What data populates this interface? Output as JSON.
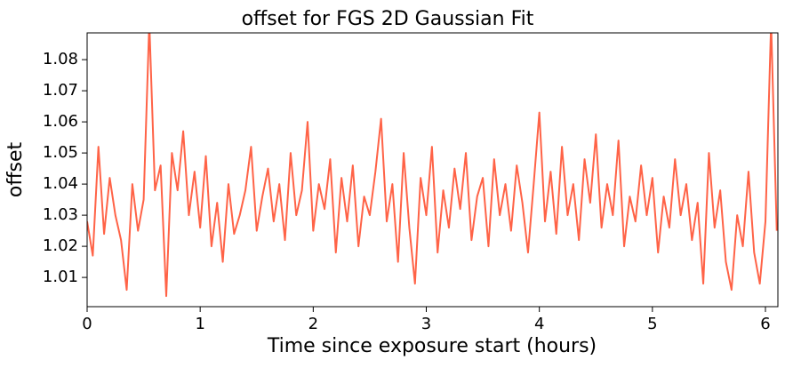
{
  "chart_data": {
    "type": "line",
    "title": "offset for FGS 2D Gaussian Fit",
    "xlabel": "Time since exposure start (hours)",
    "ylabel": "offset",
    "xlim": [
      0,
      6.11
    ],
    "ylim": [
      1.0006,
      1.0886
    ],
    "xticks": [
      0,
      1,
      2,
      3,
      4,
      5,
      6
    ],
    "yticks": [
      1.01,
      1.02,
      1.03,
      1.04,
      1.05,
      1.06,
      1.07,
      1.08
    ],
    "grid": false,
    "series": [
      {
        "color": "#ff6347",
        "x": [
          0,
          0.05,
          0.1,
          0.15,
          0.2,
          0.25,
          0.3,
          0.35,
          0.4,
          0.45,
          0.5,
          0.55,
          0.6,
          0.65,
          0.7,
          0.75,
          0.8,
          0.85,
          0.9,
          0.95,
          1,
          1.05,
          1.1,
          1.15,
          1.2,
          1.25,
          1.3,
          1.35,
          1.4,
          1.45,
          1.5,
          1.55,
          1.6,
          1.65,
          1.7,
          1.75,
          1.8,
          1.85,
          1.9,
          1.95,
          2,
          2.05,
          2.1,
          2.15,
          2.2,
          2.25,
          2.3,
          2.35,
          2.4,
          2.45,
          2.5,
          2.55,
          2.6,
          2.65,
          2.7,
          2.75,
          2.8,
          2.85,
          2.9,
          2.95,
          3,
          3.05,
          3.1,
          3.15,
          3.2,
          3.25,
          3.3,
          3.35,
          3.4,
          3.45,
          3.5,
          3.55,
          3.6,
          3.65,
          3.7,
          3.75,
          3.8,
          3.85,
          3.9,
          3.95,
          4,
          4.05,
          4.1,
          4.15,
          4.2,
          4.25,
          4.3,
          4.35,
          4.4,
          4.45,
          4.5,
          4.55,
          4.6,
          4.65,
          4.7,
          4.75,
          4.8,
          4.85,
          4.9,
          4.95,
          5,
          5.05,
          5.1,
          5.15,
          5.2,
          5.25,
          5.3,
          5.35,
          5.4,
          5.45,
          5.5,
          5.55,
          5.6,
          5.65,
          5.7,
          5.75,
          5.8,
          5.85,
          5.9,
          5.95,
          6,
          6.05,
          6.1
        ],
        "values": [
          1.028,
          1.017,
          1.052,
          1.024,
          1.042,
          1.03,
          1.022,
          1.006,
          1.04,
          1.025,
          1.035,
          1.092,
          1.038,
          1.046,
          1.004,
          1.05,
          1.038,
          1.057,
          1.03,
          1.044,
          1.026,
          1.049,
          1.02,
          1.034,
          1.015,
          1.04,
          1.024,
          1.03,
          1.038,
          1.052,
          1.025,
          1.036,
          1.045,
          1.028,
          1.04,
          1.022,
          1.05,
          1.03,
          1.038,
          1.06,
          1.025,
          1.04,
          1.032,
          1.048,
          1.018,
          1.042,
          1.028,
          1.046,
          1.02,
          1.036,
          1.03,
          1.044,
          1.061,
          1.028,
          1.04,
          1.015,
          1.05,
          1.026,
          1.008,
          1.042,
          1.03,
          1.052,
          1.018,
          1.038,
          1.026,
          1.045,
          1.032,
          1.05,
          1.022,
          1.036,
          1.042,
          1.02,
          1.048,
          1.03,
          1.04,
          1.025,
          1.046,
          1.034,
          1.018,
          1.04,
          1.063,
          1.028,
          1.044,
          1.024,
          1.052,
          1.03,
          1.04,
          1.022,
          1.048,
          1.034,
          1.056,
          1.026,
          1.04,
          1.03,
          1.054,
          1.02,
          1.036,
          1.028,
          1.046,
          1.03,
          1.042,
          1.018,
          1.036,
          1.026,
          1.048,
          1.03,
          1.04,
          1.022,
          1.034,
          1.008,
          1.05,
          1.026,
          1.038,
          1.015,
          1.006,
          1.03,
          1.02,
          1.044,
          1.018,
          1.008,
          1.028,
          1.092,
          1.025
        ]
      }
    ]
  }
}
